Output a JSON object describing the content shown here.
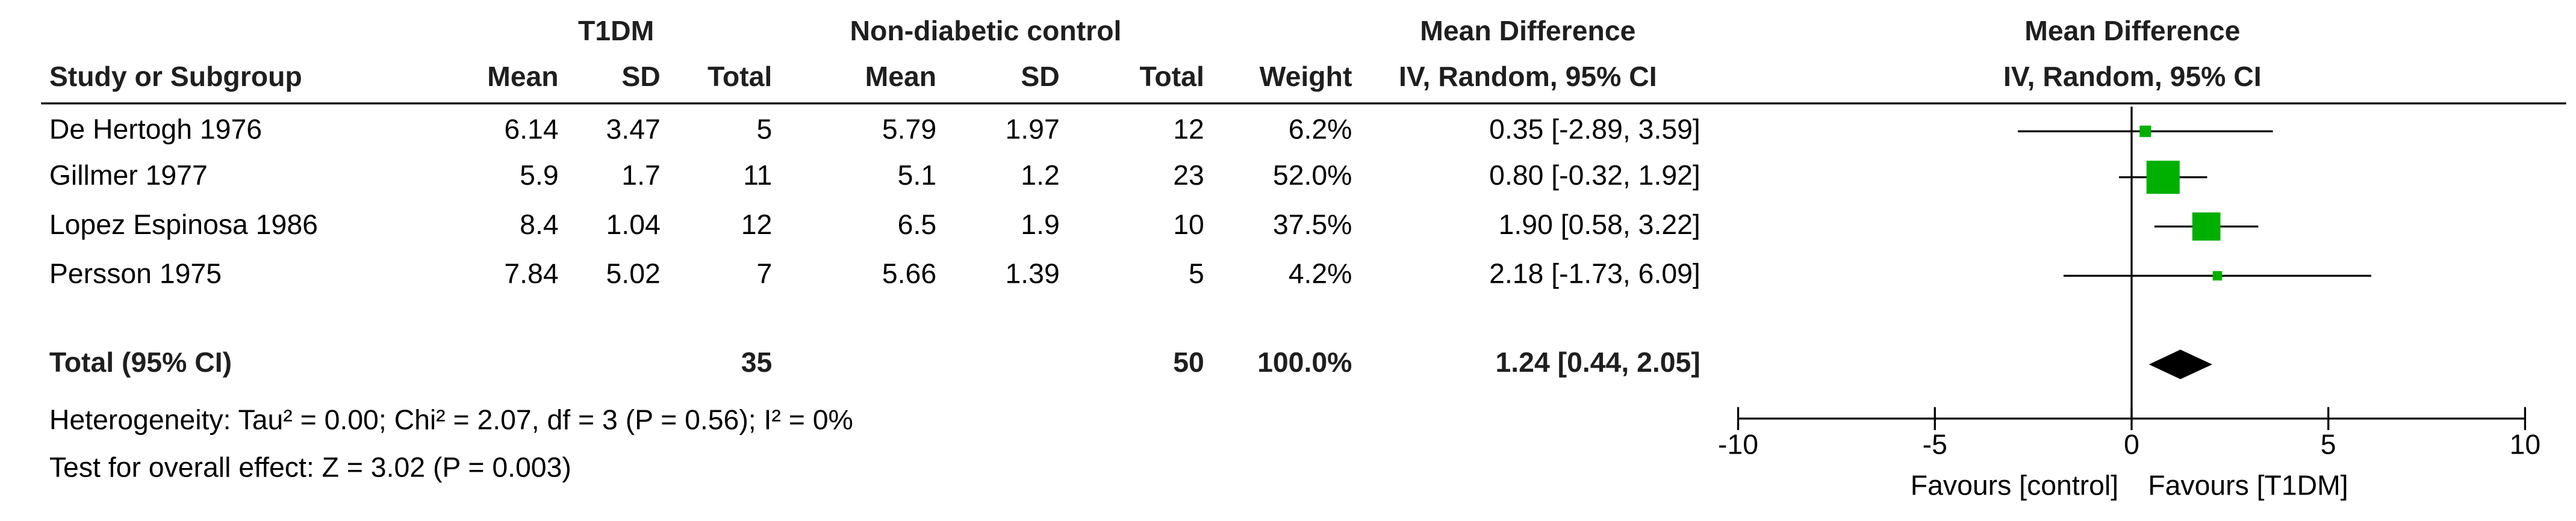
{
  "chart_data": {
    "type": "forest",
    "group_headers": [
      "T1DM",
      "Non-diabetic control",
      "Mean Difference"
    ],
    "columns": [
      "Study or Subgroup",
      "Mean",
      "SD",
      "Total",
      "Mean",
      "SD",
      "Total",
      "Weight",
      "IV, Random, 95% CI"
    ],
    "plot_title": "Mean Difference",
    "plot_subtitle": "IV, Random, 95% CI",
    "studies": [
      {
        "name": "De Hertogh 1976",
        "t1": [
          6.14,
          3.47,
          5
        ],
        "ctrl": [
          5.79,
          1.97,
          12
        ],
        "weight": 6.2,
        "weight_label": "6.2%",
        "md": 0.35,
        "ci": [
          -2.89,
          3.59
        ],
        "ci_label": "0.35 [-2.89, 3.59]"
      },
      {
        "name": "Gillmer 1977",
        "t1": [
          5.9,
          1.7,
          11
        ],
        "ctrl": [
          5.1,
          1.2,
          23
        ],
        "weight": 52.0,
        "weight_label": "52.0%",
        "md": 0.8,
        "ci": [
          -0.32,
          1.92
        ],
        "ci_label": "0.80 [-0.32, 1.92]"
      },
      {
        "name": "Lopez Espinosa 1986",
        "t1": [
          8.4,
          1.04,
          12
        ],
        "ctrl": [
          6.5,
          1.9,
          10
        ],
        "weight": 37.5,
        "weight_label": "37.5%",
        "md": 1.9,
        "ci": [
          0.58,
          3.22
        ],
        "ci_label": "1.90 [0.58, 3.22]"
      },
      {
        "name": "Persson 1975",
        "t1": [
          7.84,
          5.02,
          7
        ],
        "ctrl": [
          5.66,
          1.39,
          5
        ],
        "weight": 4.2,
        "weight_label": "4.2%",
        "md": 2.18,
        "ci": [
          -1.73,
          6.09
        ],
        "ci_label": "2.18 [-1.73, 6.09]"
      }
    ],
    "total": {
      "name": "Total (95% CI)",
      "t1_total": 35,
      "ctrl_total": 50,
      "weight": 100.0,
      "weight_label": "100.0%",
      "md": 1.24,
      "ci": [
        0.44,
        2.05
      ],
      "ci_label": "1.24 [0.44, 2.05]"
    },
    "heterogeneity": "Heterogeneity: Tau² = 0.00; Chi² = 2.07, df = 3 (P = 0.56); I² = 0%",
    "overall_effect": "Test for overall effect: Z = 3.02 (P = 0.003)",
    "xlim": [
      -10,
      10
    ],
    "xticks": [
      -10,
      -5,
      0,
      5,
      10
    ],
    "xlabel_left": "Favours [control]",
    "xlabel_right": "Favours [T1DM]",
    "color": "#00b000"
  }
}
